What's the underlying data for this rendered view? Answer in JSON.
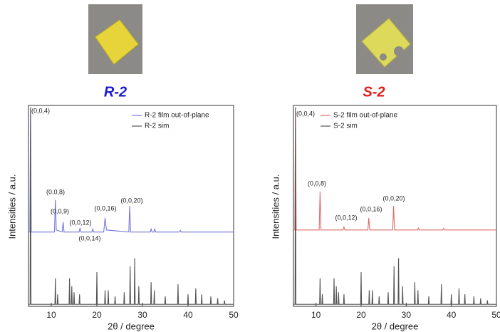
{
  "chart_data": [
    {
      "type": "line",
      "title": "R-2",
      "title_color": "#1c1cd0",
      "xlabel": "2θ / degree",
      "ylabel": "Intensities / a.u.",
      "xlim": [
        5,
        50
      ],
      "xticks": [
        10,
        20,
        30,
        40,
        50
      ],
      "ylim": [
        0,
        100
      ],
      "series": [
        {
          "name": "R-2 film out-of-plane",
          "color": "#7676dc",
          "x": [
            5,
            5.3,
            5.45,
            5.6,
            10.7,
            10.9,
            11.1,
            12.4,
            12.6,
            12.8,
            16.1,
            16.3,
            16.5,
            18.9,
            19.1,
            19.3,
            21.5,
            21.8,
            22.1,
            27.0,
            27.2,
            27.4,
            31.7,
            31.9,
            32.1,
            32.5,
            32.7,
            32.9,
            38.1,
            38.3,
            38.5,
            50
          ],
          "values": [
            37,
            37,
            99,
            37,
            37,
            53,
            38,
            37,
            42,
            37,
            37,
            39,
            37,
            37,
            38.5,
            37,
            37,
            44,
            38,
            37,
            50,
            37,
            37,
            38.5,
            37,
            37,
            38.5,
            37,
            37,
            37.8,
            37,
            37
          ]
        },
        {
          "name": "R-2 sim",
          "color": "#555555",
          "x": [
            5,
            5.35,
            5.45,
            5.55,
            10.8,
            10.9,
            11.0,
            11.3,
            11.4,
            11.5,
            13.9,
            14.0,
            14.1,
            14.4,
            14.5,
            14.6,
            14.9,
            15.0,
            15.1,
            16.1,
            16.2,
            16.3,
            19.9,
            20.0,
            20.1,
            21.7,
            21.8,
            21.9,
            22.4,
            22.5,
            22.6,
            23.9,
            24.0,
            24.1,
            25.9,
            26.0,
            26.1,
            27.2,
            27.3,
            27.4,
            28.2,
            28.3,
            28.4,
            29.1,
            29.2,
            29.3,
            31.8,
            31.9,
            32.0,
            32.5,
            32.6,
            32.7,
            34.9,
            35.0,
            35.1,
            37.7,
            37.8,
            37.9,
            39.9,
            40.0,
            40.1,
            41.6,
            41.7,
            41.8,
            42.9,
            43.0,
            43.1,
            44.9,
            45.0,
            45.1,
            46.4,
            46.5,
            46.6,
            47.9,
            48.0,
            48.1,
            50
          ],
          "values": [
            1,
            1,
            99,
            1,
            1,
            14,
            1,
            1,
            6,
            1,
            1,
            14,
            1,
            1,
            10,
            1,
            1,
            7,
            1,
            1,
            6,
            1,
            1,
            17,
            1,
            1,
            8,
            1,
            1,
            8,
            1,
            1,
            5,
            1,
            1,
            7,
            1,
            1,
            20,
            1,
            1,
            24,
            1,
            1,
            10,
            1,
            1,
            12,
            1,
            1,
            8,
            1,
            1,
            5,
            1,
            1,
            11,
            1,
            1,
            6,
            1,
            1,
            9,
            1,
            1,
            6,
            1,
            1,
            5,
            1,
            1,
            4,
            1,
            1,
            3,
            1,
            1
          ]
        }
      ],
      "annotations": [
        "(0,0,4)",
        "(0,0,8)",
        "(0,0,9)",
        "(0,0,12)",
        "(0,0,14)",
        "(0,0,16)",
        "(0,0,20)"
      ]
    },
    {
      "type": "line",
      "title": "S-2",
      "title_color": "#e01c1c",
      "xlabel": "2θ / degree",
      "ylabel": "Intensities / a.u.",
      "xlim": [
        5,
        50
      ],
      "xticks": [
        10,
        20,
        30,
        40,
        50
      ],
      "ylim": [
        0,
        100
      ],
      "series": [
        {
          "name": "S-2 film out-of-plane",
          "color": "#e06a6a",
          "x": [
            5,
            5.3,
            5.45,
            5.6,
            10.7,
            10.9,
            11.1,
            16.0,
            16.2,
            16.4,
            21.5,
            21.7,
            21.9,
            27.0,
            27.2,
            27.4,
            32.5,
            32.7,
            32.9,
            38.1,
            38.3,
            38.5,
            50
          ],
          "values": [
            38,
            38,
            99,
            38,
            38,
            57,
            38,
            38,
            39.5,
            38,
            38,
            44,
            38,
            38,
            50,
            38,
            38,
            39,
            38,
            38,
            38.8,
            38,
            38
          ]
        },
        {
          "name": "S-2 sim",
          "color": "#555555",
          "x": [
            5,
            5.35,
            5.45,
            5.55,
            10.8,
            10.9,
            11.0,
            11.3,
            11.4,
            11.5,
            13.9,
            14.0,
            14.1,
            14.4,
            14.5,
            14.6,
            14.9,
            15.0,
            15.1,
            16.1,
            16.2,
            16.3,
            19.9,
            20.0,
            20.1,
            21.7,
            21.8,
            21.9,
            22.4,
            22.5,
            22.6,
            23.9,
            24.0,
            24.1,
            25.9,
            26.0,
            26.1,
            27.2,
            27.3,
            27.4,
            28.2,
            28.3,
            28.4,
            29.1,
            29.2,
            29.3,
            31.8,
            31.9,
            32.0,
            32.5,
            32.6,
            32.7,
            34.9,
            35.0,
            35.1,
            37.7,
            37.8,
            37.9,
            39.9,
            40.0,
            40.1,
            41.6,
            41.7,
            41.8,
            42.9,
            43.0,
            43.1,
            44.9,
            45.0,
            45.1,
            46.4,
            46.5,
            46.6,
            47.9,
            48.0,
            48.1,
            50
          ],
          "values": [
            1,
            1,
            99,
            1,
            1,
            14,
            1,
            1,
            6,
            1,
            1,
            14,
            1,
            1,
            10,
            1,
            1,
            7,
            1,
            1,
            6,
            1,
            1,
            17,
            1,
            1,
            8,
            1,
            1,
            8,
            1,
            1,
            5,
            1,
            1,
            7,
            1,
            1,
            20,
            1,
            1,
            24,
            1,
            1,
            10,
            1,
            1,
            12,
            1,
            1,
            8,
            1,
            1,
            5,
            1,
            1,
            11,
            1,
            1,
            6,
            1,
            1,
            9,
            1,
            1,
            6,
            1,
            1,
            5,
            1,
            1,
            4,
            1,
            1,
            3,
            1,
            1
          ]
        }
      ],
      "annotations": [
        "(0,0,4)",
        "(0,0,8)",
        "(0,0,12)",
        "(0,0,16)",
        "(0,0,20)"
      ]
    }
  ]
}
